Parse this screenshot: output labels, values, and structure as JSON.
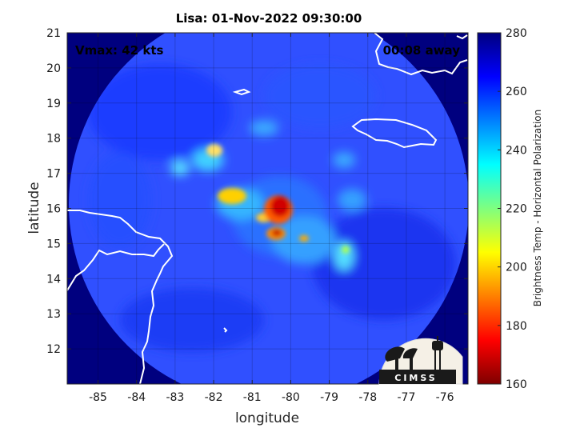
{
  "title": "Lisa: 01-Nov-2022 09:30:00",
  "annotations": {
    "vmax": "Vmax: 42 kts",
    "away": "00:08 away"
  },
  "axes": {
    "xlabel": "longitude",
    "ylabel": "latitude",
    "xlim": [
      -85.8,
      -75.4
    ],
    "ylim": [
      11,
      21
    ],
    "xticks": [
      "-85",
      "-84",
      "-83",
      "-82",
      "-81",
      "-80",
      "-79",
      "-78",
      "-77",
      "-76"
    ],
    "yticks": [
      "12",
      "13",
      "14",
      "15",
      "16",
      "17",
      "18",
      "19",
      "20",
      "21"
    ],
    "grid": true
  },
  "colorbar": {
    "label": "Brightness Temp - Horizontal Polarization",
    "ticks": [
      "160",
      "180",
      "200",
      "220",
      "240",
      "260",
      "280"
    ],
    "range": [
      160,
      280
    ],
    "colormap": "jet"
  },
  "logo": {
    "text": "CIMSS"
  },
  "colors": {
    "land": "#00007f",
    "coast": "#ffffff",
    "background": "#3b5cff"
  }
}
